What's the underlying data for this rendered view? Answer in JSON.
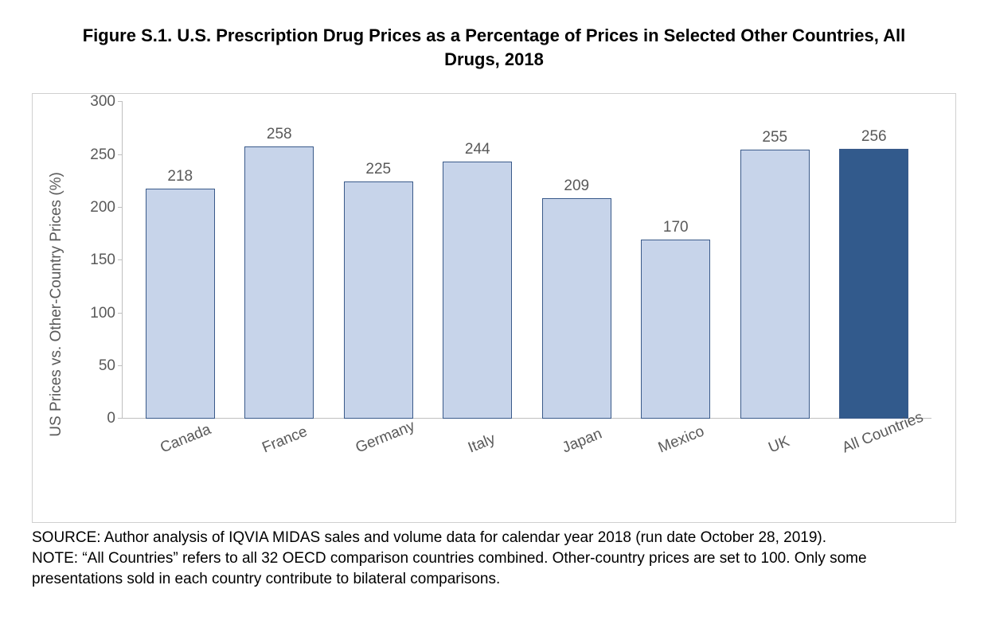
{
  "chart": {
    "type": "bar",
    "title": "Figure S.1. U.S. Prescription Drug Prices as a Percentage of Prices in Selected Other Countries, All Drugs, 2018",
    "ylabel": "US Prices vs. Other-Country Prices (%)",
    "ylim": [
      0,
      300
    ],
    "ytick_step": 50,
    "yticks": [
      0,
      50,
      100,
      150,
      200,
      250,
      300
    ],
    "categories": [
      "Canada",
      "France",
      "Germany",
      "Italy",
      "Japan",
      "Mexico",
      "UK",
      "All Countries"
    ],
    "values": [
      218,
      258,
      225,
      244,
      209,
      170,
      255,
      256
    ],
    "bar_colors": [
      "#c7d4ea",
      "#c7d4ea",
      "#c7d4ea",
      "#c7d4ea",
      "#c7d4ea",
      "#c7d4ea",
      "#c7d4ea",
      "#325a8c"
    ],
    "bar_border_color": "#3a5a8a",
    "axis_color": "#bfbfbf",
    "text_color": "#595959",
    "background_color": "#ffffff",
    "outer_border_color": "#d0d0d0",
    "title_fontsize": 22,
    "label_fontsize": 19,
    "tick_fontsize": 19,
    "value_fontsize": 19,
    "bar_width": 0.7,
    "xlabel_rotation_deg": -22
  },
  "footnote": {
    "source": "SOURCE: Author analysis of IQVIA MIDAS sales and volume data for calendar year 2018 (run date October 28, 2019).",
    "note": "NOTE: “All Countries” refers to all 32 OECD comparison countries combined. Other-country prices are set to 100. Only some presentations sold in each country contribute to bilateral comparisons."
  }
}
